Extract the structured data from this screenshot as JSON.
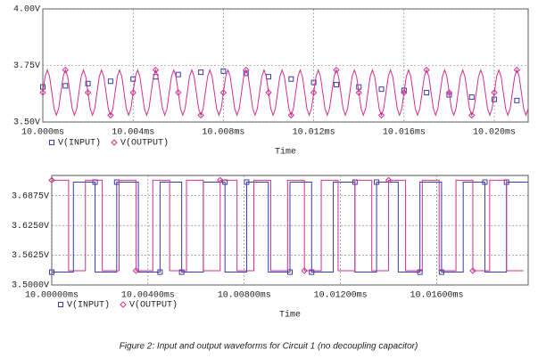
{
  "chart_data": [
    {
      "type": "line",
      "xlabel": "Time",
      "xlim": [
        10.0,
        10.0215
      ],
      "ylim": [
        3.5,
        4.0
      ],
      "xticks": [
        {
          "value": 10.0,
          "label": "10.000ms"
        },
        {
          "value": 10.004,
          "label": "10.004ms"
        },
        {
          "value": 10.008,
          "label": "10.008ms"
        },
        {
          "value": 10.012,
          "label": "10.012ms"
        },
        {
          "value": 10.016,
          "label": "10.016ms"
        },
        {
          "value": 10.02,
          "label": "10.020ms"
        }
      ],
      "yticks": [
        {
          "value": 3.5,
          "label": "3.50V"
        },
        {
          "value": 3.75,
          "label": "3.75V"
        },
        {
          "value": 4.0,
          "label": "4.00V"
        }
      ],
      "grid": true,
      "series": [
        {
          "name": "V(INPUT)",
          "color": "#3a3aa8",
          "marker": "square",
          "line": false,
          "x": [
            10.0,
            10.001,
            10.002,
            10.003,
            10.004,
            10.005,
            10.006,
            10.007,
            10.008,
            10.009,
            10.01,
            10.011,
            10.012,
            10.013,
            10.014,
            10.015,
            10.016,
            10.017,
            10.018,
            10.019,
            10.02,
            10.021
          ],
          "values": [
            3.655,
            3.66,
            3.67,
            3.68,
            3.69,
            3.7,
            3.71,
            3.72,
            3.725,
            3.715,
            3.7,
            3.69,
            3.675,
            3.665,
            3.655,
            3.645,
            3.64,
            3.63,
            3.62,
            3.61,
            3.6,
            3.595
          ]
        },
        {
          "name": "V(OUTPUT)",
          "color": "#d0308f",
          "marker": "diamond",
          "line": true,
          "x": [
            10.0,
            10.0001,
            10.0002,
            10.0003,
            10.0004,
            10.0005,
            10.0006,
            10.0007,
            10.0008,
            10.0009,
            10.001,
            10.0011,
            10.0012,
            10.0013,
            10.0014,
            10.0015,
            10.0016,
            10.0017,
            10.0018,
            10.0019,
            10.002,
            10.0021,
            10.0022,
            10.0023,
            10.0024,
            10.0025,
            10.0026,
            10.0027,
            10.0028,
            10.0029,
            10.003,
            10.0031,
            10.0032,
            10.0033,
            10.0034,
            10.0035,
            10.0036,
            10.0037,
            10.0038,
            10.0039,
            10.004,
            10.0041,
            10.0042,
            10.0043,
            10.0044,
            10.0045,
            10.0046,
            10.0047,
            10.0048,
            10.0049,
            10.005,
            10.0051,
            10.0052,
            10.0053,
            10.0054,
            10.0055,
            10.0056,
            10.0057,
            10.0058,
            10.0059,
            10.006,
            10.0061,
            10.0062,
            10.0063,
            10.0064,
            10.0065,
            10.0066,
            10.0067,
            10.0068,
            10.0069,
            10.007,
            10.0071,
            10.0072,
            10.0073,
            10.0074,
            10.0075,
            10.0076,
            10.0077,
            10.0078,
            10.0079,
            10.008,
            10.0081,
            10.0082,
            10.0083,
            10.0084,
            10.0085,
            10.0086,
            10.0087,
            10.0088,
            10.0089,
            10.009,
            10.0091,
            10.0092,
            10.0093,
            10.0094,
            10.0095,
            10.0096,
            10.0097,
            10.0098,
            10.0099,
            10.01,
            10.0101,
            10.0102,
            10.0103,
            10.0104,
            10.0105,
            10.0106,
            10.0107,
            10.0108,
            10.0109,
            10.011,
            10.0111,
            10.0112,
            10.0113,
            10.0114,
            10.0115,
            10.0116,
            10.0117,
            10.0118,
            10.0119,
            10.012,
            10.0121,
            10.0122,
            10.0123,
            10.0124,
            10.0125,
            10.0126,
            10.0127,
            10.0128,
            10.0129,
            10.013,
            10.0131,
            10.0132,
            10.0133,
            10.0134,
            10.0135,
            10.0136,
            10.0137,
            10.0138,
            10.0139,
            10.014,
            10.0141,
            10.0142,
            10.0143,
            10.0144,
            10.0145,
            10.0146,
            10.0147,
            10.0148,
            10.0149,
            10.015,
            10.0151,
            10.0152,
            10.0153,
            10.0154,
            10.0155,
            10.0156,
            10.0157,
            10.0158,
            10.0159,
            10.016,
            10.0161,
            10.0162,
            10.0163,
            10.0164,
            10.0165,
            10.0166,
            10.0167,
            10.0168,
            10.0169,
            10.017,
            10.0171,
            10.0172,
            10.0173,
            10.0174,
            10.0175,
            10.0176,
            10.0177,
            10.0178,
            10.0179,
            10.018,
            10.0181,
            10.0182,
            10.0183,
            10.0184,
            10.0185,
            10.0186,
            10.0187,
            10.0188,
            10.0189,
            10.019,
            10.0191,
            10.0192,
            10.0193,
            10.0194,
            10.0195,
            10.0196,
            10.0197,
            10.0198,
            10.0199,
            10.02,
            10.0201,
            10.0202,
            10.0203,
            10.0204,
            10.0205,
            10.0206,
            10.0207,
            10.0208,
            10.0209,
            10.021,
            10.0211,
            10.0212,
            10.0213,
            10.0214,
            10.0215
          ],
          "values": [
            3.63,
            3.701,
            3.73,
            3.701,
            3.63,
            3.559,
            3.53,
            3.559,
            3.63,
            3.701,
            3.73,
            3.701,
            3.63,
            3.559,
            3.53,
            3.559,
            3.63,
            3.701,
            3.73,
            3.701,
            3.63,
            3.559,
            3.53,
            3.559,
            3.63,
            3.701,
            3.73,
            3.701,
            3.63,
            3.559,
            3.53,
            3.559,
            3.63,
            3.701,
            3.73,
            3.701,
            3.63,
            3.559,
            3.53,
            3.559,
            3.63,
            3.701,
            3.73,
            3.701,
            3.63,
            3.559,
            3.53,
            3.559,
            3.63,
            3.701,
            3.73,
            3.701,
            3.63,
            3.559,
            3.53,
            3.559,
            3.63,
            3.701,
            3.73,
            3.701,
            3.63,
            3.559,
            3.53,
            3.559,
            3.63,
            3.701,
            3.73,
            3.701,
            3.63,
            3.559,
            3.53,
            3.559,
            3.63,
            3.701,
            3.73,
            3.701,
            3.63,
            3.559,
            3.53,
            3.559,
            3.63,
            3.701,
            3.73,
            3.701,
            3.63,
            3.559,
            3.53,
            3.559,
            3.63,
            3.701,
            3.73,
            3.701,
            3.63,
            3.559,
            3.53,
            3.559,
            3.63,
            3.701,
            3.73,
            3.701,
            3.63,
            3.559,
            3.53,
            3.559,
            3.63,
            3.701,
            3.73,
            3.701,
            3.63,
            3.559,
            3.53,
            3.559,
            3.63,
            3.701,
            3.73,
            3.701,
            3.63,
            3.559,
            3.53,
            3.559,
            3.63,
            3.701,
            3.73,
            3.701,
            3.63,
            3.559,
            3.53,
            3.559,
            3.63,
            3.701,
            3.73,
            3.701,
            3.63,
            3.559,
            3.53,
            3.559,
            3.63,
            3.701,
            3.73,
            3.701,
            3.63,
            3.559,
            3.53,
            3.559,
            3.63,
            3.701,
            3.73,
            3.701,
            3.63,
            3.559,
            3.53,
            3.559,
            3.63,
            3.701,
            3.73,
            3.701,
            3.63,
            3.559,
            3.53,
            3.559,
            3.63,
            3.701,
            3.73,
            3.701,
            3.63,
            3.559,
            3.53,
            3.559,
            3.63,
            3.701,
            3.73,
            3.701,
            3.63,
            3.559,
            3.53,
            3.559,
            3.63,
            3.701,
            3.73,
            3.701,
            3.63,
            3.559,
            3.53,
            3.559,
            3.63,
            3.701,
            3.73,
            3.701,
            3.63,
            3.559,
            3.53,
            3.559,
            3.63,
            3.701,
            3.73,
            3.701,
            3.63,
            3.559,
            3.53,
            3.559,
            3.63,
            3.701,
            3.73,
            3.701,
            3.63,
            3.559,
            3.53,
            3.559,
            3.63,
            3.701,
            3.73,
            3.701,
            3.63,
            3.559,
            3.53,
            3.559
          ]
        }
      ]
    },
    {
      "type": "line",
      "xlabel": "Time",
      "xlim": [
        10.0,
        10.0198
      ],
      "ylim": [
        3.5,
        3.73
      ],
      "xticks": [
        {
          "value": 10.0,
          "label": "10.00000ms"
        },
        {
          "value": 10.004,
          "label": "10.00400ms"
        },
        {
          "value": 10.008,
          "label": "10.00800ms"
        },
        {
          "value": 10.012,
          "label": "10.01200ms"
        },
        {
          "value": 10.016,
          "label": "10.01600ms"
        }
      ],
      "yticks": [
        {
          "value": 3.5,
          "label": "3.5000V"
        },
        {
          "value": 3.5625,
          "label": "3.5625V"
        },
        {
          "value": 3.625,
          "label": "3.6250V"
        },
        {
          "value": 3.6875,
          "label": "3.6875V"
        }
      ],
      "grid": true,
      "series": [
        {
          "name": "V(INPUT)",
          "color": "#3a3aa8",
          "marker": "square",
          "line": true,
          "x": [
            10.0,
            10.0009,
            10.0009,
            10.0018,
            10.0018,
            10.0027,
            10.0027,
            10.0036,
            10.0036,
            10.0045,
            10.0045,
            10.0054,
            10.0054,
            10.0063,
            10.0063,
            10.0072,
            10.0072,
            10.0081,
            10.0081,
            10.009,
            10.009,
            10.0099,
            10.0099,
            10.0108,
            10.0108,
            10.0117,
            10.0117,
            10.0126,
            10.0126,
            10.0135,
            10.0135,
            10.0144,
            10.0144,
            10.0153,
            10.0153,
            10.0162,
            10.0162,
            10.0171,
            10.0171,
            10.018,
            10.018,
            10.0189,
            10.0189,
            10.0198
          ],
          "values": [
            3.527,
            3.527,
            3.716,
            3.716,
            3.527,
            3.527,
            3.716,
            3.716,
            3.527,
            3.527,
            3.716,
            3.716,
            3.527,
            3.527,
            3.716,
            3.716,
            3.527,
            3.527,
            3.716,
            3.716,
            3.527,
            3.527,
            3.716,
            3.716,
            3.527,
            3.527,
            3.716,
            3.716,
            3.527,
            3.527,
            3.716,
            3.716,
            3.527,
            3.527,
            3.716,
            3.716,
            3.527,
            3.527,
            3.716,
            3.716,
            3.527,
            3.527,
            3.716,
            3.716
          ]
        },
        {
          "name": "V(OUTPUT)",
          "color": "#d0308f",
          "marker": "diamond",
          "line": true,
          "x": [
            10.0,
            10.0007,
            10.0007,
            10.0014,
            10.0014,
            10.0021,
            10.0021,
            10.0028,
            10.0028,
            10.0035,
            10.0035,
            10.0042,
            10.0042,
            10.0049,
            10.0049,
            10.0056,
            10.0056,
            10.0063,
            10.0063,
            10.007,
            10.007,
            10.0077,
            10.0077,
            10.0084,
            10.0084,
            10.0091,
            10.0091,
            10.0098,
            10.0098,
            10.0105,
            10.0105,
            10.0112,
            10.0112,
            10.0119,
            10.0119,
            10.0126,
            10.0126,
            10.0133,
            10.0133,
            10.014,
            10.014,
            10.0147,
            10.0147,
            10.0154,
            10.0154,
            10.0161,
            10.0161,
            10.0168,
            10.0168,
            10.0175,
            10.0175,
            10.0182,
            10.0182,
            10.0189,
            10.0189,
            10.0196
          ],
          "values": [
            3.72,
            3.72,
            3.53,
            3.53,
            3.72,
            3.72,
            3.53,
            3.53,
            3.72,
            3.72,
            3.53,
            3.53,
            3.72,
            3.72,
            3.53,
            3.53,
            3.72,
            3.72,
            3.53,
            3.53,
            3.72,
            3.72,
            3.53,
            3.53,
            3.72,
            3.72,
            3.53,
            3.53,
            3.72,
            3.72,
            3.53,
            3.53,
            3.72,
            3.72,
            3.53,
            3.53,
            3.72,
            3.72,
            3.53,
            3.53,
            3.72,
            3.72,
            3.53,
            3.53,
            3.72,
            3.72,
            3.53,
            3.53,
            3.72,
            3.72,
            3.53,
            3.53,
            3.72,
            3.72,
            3.53,
            3.53
          ]
        }
      ]
    }
  ],
  "caption": "Figure 2: Input and output waveforms for Circuit 1 (no decoupling capacitor)"
}
